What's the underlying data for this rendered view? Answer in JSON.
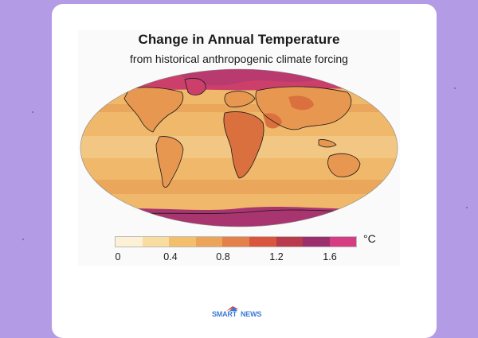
{
  "figure": {
    "title": "Change in Annual Temperature",
    "subtitle": "from historical anthropogenic climate forcing"
  },
  "colorbar": {
    "unit": "°C",
    "colors": [
      "#fcf1d4",
      "#f8dca0",
      "#f3bf6b",
      "#eca35a",
      "#e5804a",
      "#d9553e",
      "#b83a4b",
      "#9b2f6e",
      "#d63c82"
    ],
    "tick_labels": [
      "0",
      "0.4",
      "0.8",
      "1.2",
      "1.6"
    ]
  },
  "map_colors": {
    "ocean_base": "#efb86a",
    "tropic_band": "#f2c783",
    "mid_ocean": "#eaa65b",
    "land": "#e7974f",
    "land_hot": "#d9703d",
    "arctic": "#cc3f6b",
    "arctic_deep": "#b83a6e",
    "antarctic": "#a8356f",
    "coast": "#1a1a1a"
  },
  "brand": {
    "part1": "SMART",
    "part2": "NEWS"
  }
}
